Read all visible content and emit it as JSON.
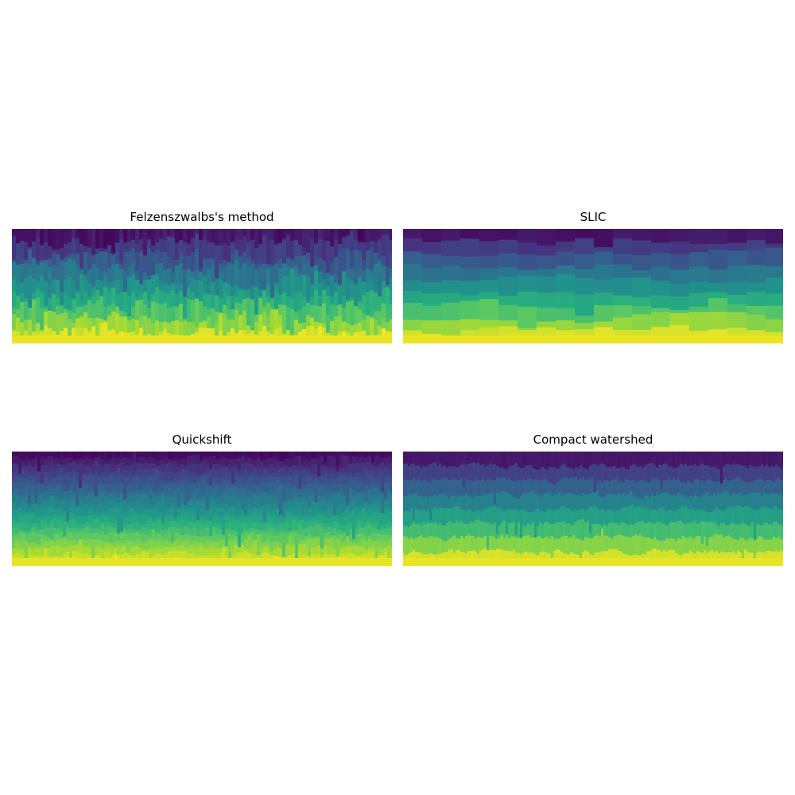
{
  "panels": [
    {
      "title": "Felzenszwalbs's method",
      "style": "felzenszwalb"
    },
    {
      "title": "SLIC",
      "style": "slic"
    },
    {
      "title": "Quickshift",
      "style": "quickshift"
    },
    {
      "title": "Compact watershed",
      "style": "watershed"
    }
  ],
  "colormap": "viridis",
  "colors": {
    "viridis_stops": [
      "#440154",
      "#472f7d",
      "#3b528b",
      "#2c728e",
      "#21918c",
      "#28ae80",
      "#5ec962",
      "#addc30",
      "#fde725"
    ]
  }
}
